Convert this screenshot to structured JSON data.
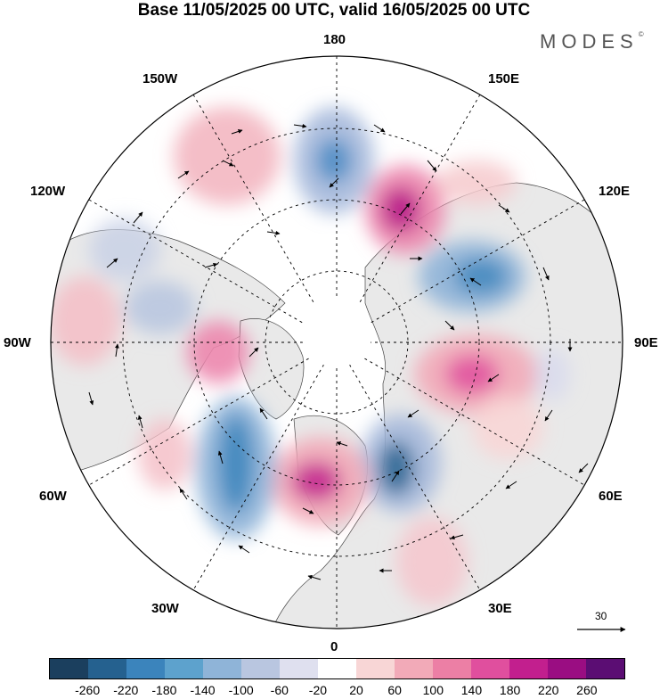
{
  "title": "Base 11/05/2025 00 UTC, valid 16/05/2025 00 UTC",
  "brand": "MODES",
  "brand_mark": "©",
  "longitude_labels": {
    "top": "180",
    "bottom": "0",
    "left": "90W",
    "right": "90E",
    "upper_left": "150W",
    "upper_right": "150E",
    "mid_left_upper": "120W",
    "mid_right_upper": "120E",
    "mid_left_lower": "60W",
    "mid_right_lower": "60E",
    "lower_left": "30W",
    "lower_right": "30E"
  },
  "vector_scale_label": "30",
  "colorbar": {
    "colors": [
      "#1b3f5e",
      "#25618f",
      "#3b84bc",
      "#5da2cd",
      "#8fb4d8",
      "#b9c6e0",
      "#dfe0ef",
      "#ffffff",
      "#f8d6d6",
      "#f2aab8",
      "#ec7fa5",
      "#e04f9e",
      "#c21f8e",
      "#9a0d82",
      "#5b0d73"
    ],
    "tick_labels": [
      "-260",
      "-220",
      "-180",
      "-140",
      "-100",
      "-60",
      "-20",
      "20",
      "60",
      "100",
      "140",
      "180",
      "220",
      "260"
    ]
  }
}
